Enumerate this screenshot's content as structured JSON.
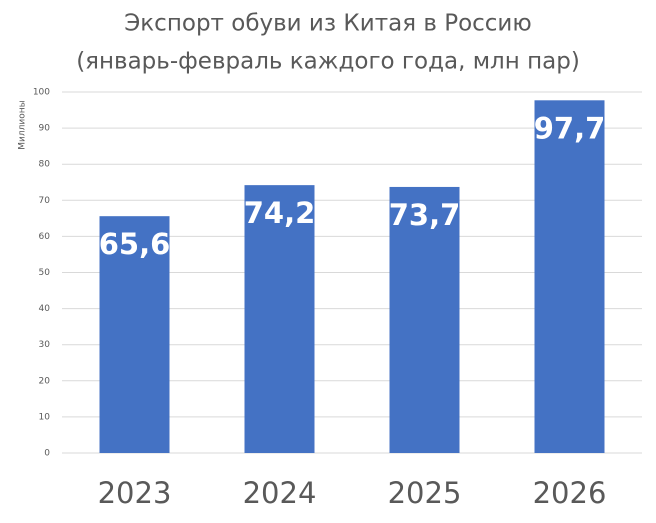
{
  "chart_data": {
    "type": "bar",
    "title": "Экспорт обуви из Китая в Россию",
    "subtitle": "(январь-февраль каждого года, млн пар)",
    "y_label": "Миллионы",
    "categories": [
      "2023",
      "2024",
      "2025",
      "2026"
    ],
    "values": [
      65.6,
      74.2,
      73.7,
      97.7
    ],
    "value_labels": [
      "65,6",
      "74,2",
      "73,7",
      "97,7"
    ],
    "color": "#4472c4",
    "ylim": [
      0,
      100
    ],
    "yticks": [
      0,
      10,
      20,
      30,
      40,
      50,
      60,
      70,
      80,
      90,
      100
    ],
    "grid": true
  }
}
